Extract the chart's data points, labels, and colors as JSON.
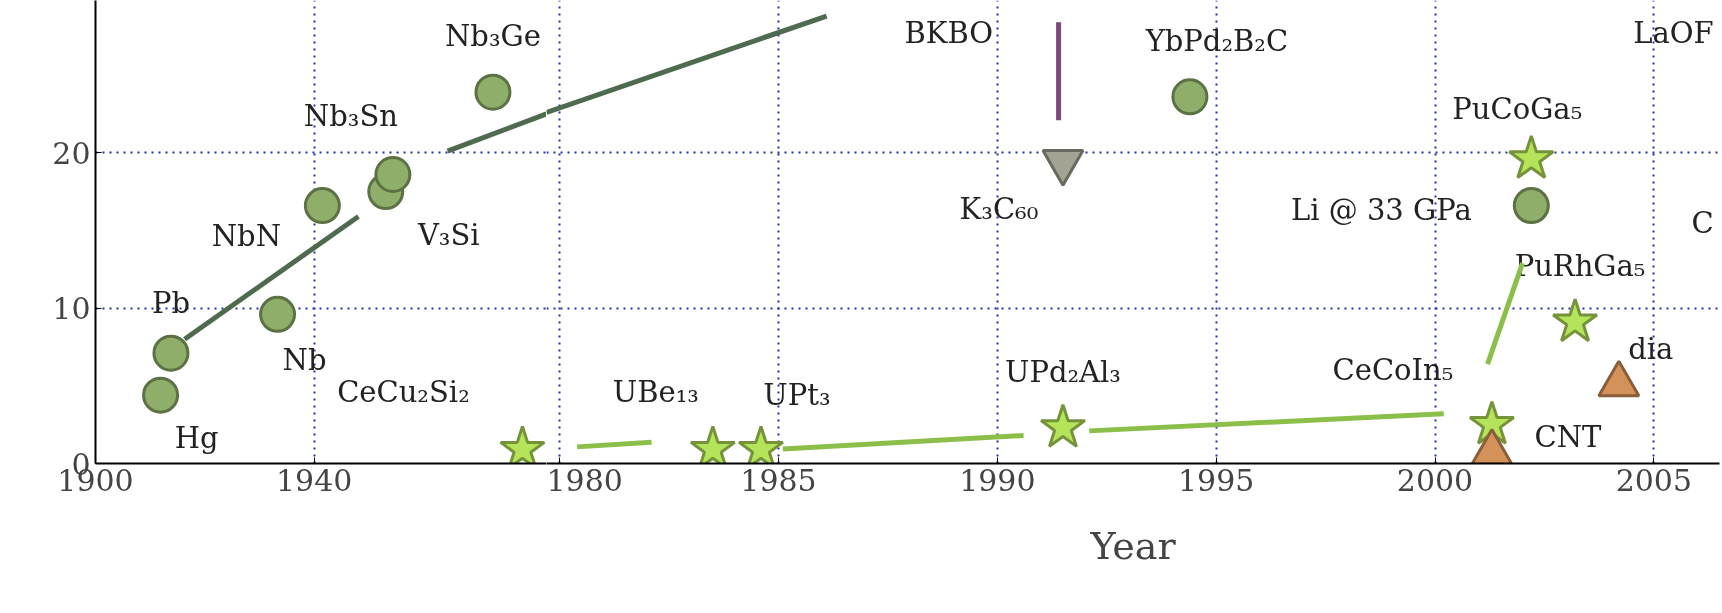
{
  "chart_data": [
    {
      "type": "scatter",
      "xlim": [
        1900,
        1982.5
      ],
      "ylim": [
        0,
        29.8
      ],
      "xticks": [
        1900,
        1940
      ],
      "yticks": [
        0,
        10,
        20
      ],
      "grid": true,
      "series": [
        {
          "name": "Hg",
          "marker": "circle",
          "color": "#8fae6a",
          "x": [
            1911.9
          ],
          "values": [
            4.4
          ]
        },
        {
          "name": "Pb",
          "marker": "circle",
          "color": "#8fae6a",
          "x": [
            1913.8
          ],
          "values": [
            7.1
          ]
        },
        {
          "name": "Nb",
          "marker": "circle",
          "color": "#8fae6a",
          "x": [
            1933.3
          ],
          "values": [
            9.6
          ]
        },
        {
          "name": "NbN",
          "marker": "circle",
          "color": "#8fae6a",
          "x": [
            1941.5
          ],
          "values": [
            16.6
          ]
        },
        {
          "name": "V₃Si",
          "marker": "circle",
          "color": "#8fae6a",
          "x": [
            1953.1
          ],
          "values": [
            17.5
          ]
        },
        {
          "name": "Nb₃Sn",
          "marker": "circle",
          "color": "#8fae6a",
          "x": [
            1954.4
          ],
          "values": [
            18.6
          ]
        },
        {
          "name": "Nb₃Ge",
          "marker": "circle",
          "color": "#8fae6a",
          "x": [
            1972.7
          ],
          "values": [
            23.9
          ]
        },
        {
          "type": "line",
          "color": "#4f6b4f",
          "x": [
            1916.3,
            1948.1
          ],
          "values": [
            8.0,
            15.9
          ]
        },
        {
          "name": "CeCu₂Si₂",
          "marker": "star",
          "color": "#b5e35a",
          "x": [
            1978.1
          ],
          "values": [
            0.9
          ]
        },
        {
          "type": "line",
          "color": "#4f6b4f",
          "x": [
            1964.4,
            1982.5
          ],
          "values": [
            20.1,
            22.5
          ]
        }
      ]
    },
    {
      "type": "scatter",
      "xlim": [
        1979.7,
        2006.5
      ],
      "ylim": [
        0,
        29.8
      ],
      "xticks": [
        1980,
        1985,
        1990,
        1995,
        2000,
        2005
      ],
      "yticks": [
        0,
        10,
        20
      ],
      "grid": true,
      "tick_labels": "x",
      "xlabel": "Year",
      "series": [
        {
          "name": "YbPd₂B₂C",
          "marker": "circle",
          "color": "#8fae6a",
          "x": [
            1994.4
          ],
          "values": [
            23.6
          ]
        },
        {
          "name": "Li @ 33 GPa",
          "marker": "circle",
          "color": "#8fae6a",
          "x": [
            2002.2
          ],
          "values": [
            16.6
          ]
        },
        {
          "name": "UBe₁₃",
          "marker": "star",
          "color": "#b5e35a",
          "x": [
            1983.5
          ],
          "values": [
            0.9
          ]
        },
        {
          "name": "UPt₃",
          "marker": "star",
          "color": "#b5e35a",
          "x": [
            1984.6
          ],
          "values": [
            0.9
          ]
        },
        {
          "name": "UPd₂Al₃",
          "marker": "star",
          "color": "#b5e35a",
          "x": [
            1991.5
          ],
          "values": [
            2.3
          ]
        },
        {
          "name": "CeCoIn₅",
          "marker": "star",
          "color": "#b5e35a",
          "x": [
            2001.3
          ],
          "values": [
            2.5
          ]
        },
        {
          "name": "PuCoGa₅",
          "marker": "star",
          "color": "#b5e35a",
          "x": [
            2002.2
          ],
          "values": [
            19.6
          ]
        },
        {
          "name": "PuRhGa₅",
          "marker": "star",
          "color": "#b5e35a",
          "x": [
            2003.2
          ],
          "values": [
            9.1
          ]
        },
        {
          "name": "K₃C₆₀",
          "marker": "triangle_down",
          "color": "#a3a393",
          "x": [
            1991.5
          ],
          "values": [
            19.4
          ]
        },
        {
          "name": "CNT",
          "marker": "triangle",
          "color": "#d4915a",
          "x": [
            2001.3
          ],
          "values": [
            0.7
          ]
        },
        {
          "name": "dia",
          "marker": "triangle",
          "color": "#d4915a",
          "x": [
            2004.2
          ],
          "values": [
            5.1
          ]
        },
        {
          "type": "line",
          "color": "#4f6b4f",
          "x": [
            1979.7,
            1986.1
          ],
          "values": [
            22.6,
            28.8
          ]
        },
        {
          "type": "line",
          "color": "#7a4a7a",
          "x": [
            1991.4,
            1991.4
          ],
          "values": [
            28.4,
            22.1
          ]
        },
        {
          "type": "line",
          "color": "#8cbf4a",
          "x": [
            1980.4,
            1982.1
          ],
          "values": [
            1.07,
            1.36
          ]
        },
        {
          "type": "line",
          "color": "#8cbf4a",
          "x": [
            1985.1,
            1990.6
          ],
          "values": [
            0.93,
            1.8
          ]
        },
        {
          "type": "line",
          "color": "#8cbf4a",
          "x": [
            1992.1,
            2000.2
          ],
          "values": [
            2.1,
            3.2
          ]
        },
        {
          "type": "line",
          "color": "#8cbf4a",
          "x": [
            2001.2,
            2002.0
          ],
          "values": [
            6.4,
            12.9
          ]
        }
      ],
      "annotations": [
        "BKBO",
        "LaOF",
        "C"
      ]
    }
  ]
}
